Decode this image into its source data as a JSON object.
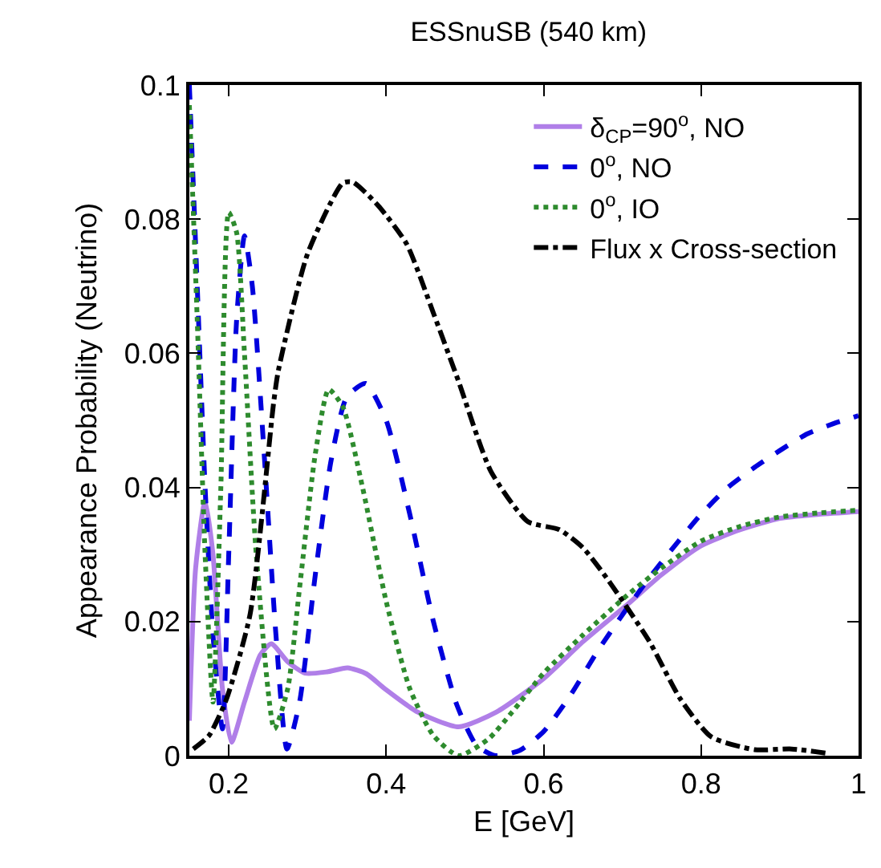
{
  "chart_data": {
    "type": "line",
    "title": "ESSnuSB (540 km)",
    "xlabel": "E [GeV]",
    "ylabel": "Appearance Probability (Neutrino)",
    "xlim": [
      0.15,
      1
    ],
    "ylim": [
      0,
      0.1
    ],
    "xticks": [
      0.2,
      0.4,
      0.6,
      0.8,
      1
    ],
    "yticks": [
      0,
      0.02,
      0.04,
      0.06,
      0.08,
      0.1
    ],
    "grid": false,
    "legend": "top right",
    "marker": "none",
    "series": [
      {
        "name": "δ$_{CP}$=90$^{o}$, NO",
        "color": "#b07fe8",
        "line_style": "solid",
        "x": [
          0.15,
          0.158,
          0.17,
          0.18,
          0.192,
          0.2035,
          0.22,
          0.24,
          0.254,
          0.275,
          0.297,
          0.325,
          0.351,
          0.375,
          0.398,
          0.44,
          0.492,
          0.54,
          0.6,
          0.65,
          0.707,
          0.75,
          0.8,
          0.85,
          0.9,
          0.95,
          1.0
        ],
        "values": [
          0.0052,
          0.028,
          0.038,
          0.03,
          0.01,
          0.002,
          0.008,
          0.015,
          0.0167,
          0.014,
          0.0123,
          0.0125,
          0.0131,
          0.0122,
          0.01,
          0.0065,
          0.0043,
          0.0065,
          0.0115,
          0.017,
          0.0226,
          0.027,
          0.0313,
          0.0337,
          0.0354,
          0.036,
          0.0364
        ]
      },
      {
        "name": "0$^{o}$, NO",
        "color": "#0000dd",
        "line_style": "dashed",
        "x": [
          0.15,
          0.16,
          0.17,
          0.18,
          0.192,
          0.2,
          0.21,
          0.22,
          0.23,
          0.245,
          0.26,
          0.274,
          0.29,
          0.31,
          0.33,
          0.35,
          0.374,
          0.4,
          0.43,
          0.46,
          0.49,
          0.515,
          0.539,
          0.57,
          0.6,
          0.634,
          0.668,
          0.7,
          0.734,
          0.768,
          0.8,
          0.834,
          0.868,
          0.9,
          0.935,
          0.968,
          1.0
        ],
        "values": [
          0.1,
          0.07,
          0.04,
          0.018,
          0.004,
          0.03,
          0.065,
          0.0775,
          0.07,
          0.045,
          0.018,
          0.001,
          0.008,
          0.027,
          0.044,
          0.0535,
          0.0555,
          0.05,
          0.036,
          0.02,
          0.0075,
          0.0015,
          0.0,
          0.0008,
          0.0036,
          0.009,
          0.0155,
          0.021,
          0.0265,
          0.0315,
          0.036,
          0.04,
          0.043,
          0.0455,
          0.048,
          0.0495,
          0.0507
        ]
      },
      {
        "name": "0$^{o}$, IO",
        "color": "#2e8b2e",
        "line_style": "dotted",
        "x": [
          0.15,
          0.16,
          0.17,
          0.18,
          0.19,
          0.2,
          0.21,
          0.22,
          0.235,
          0.258,
          0.275,
          0.29,
          0.31,
          0.327,
          0.345,
          0.37,
          0.4,
          0.43,
          0.46,
          0.492,
          0.53,
          0.56,
          0.6,
          0.65,
          0.707,
          0.75,
          0.8,
          0.85,
          0.9,
          0.95,
          1.0
        ],
        "values": [
          0.097,
          0.065,
          0.03,
          0.008,
          0.04,
          0.081,
          0.078,
          0.06,
          0.03,
          0.004,
          0.01,
          0.025,
          0.045,
          0.0546,
          0.052,
          0.04,
          0.023,
          0.01,
          0.003,
          0.0,
          0.0025,
          0.0065,
          0.0123,
          0.018,
          0.024,
          0.028,
          0.032,
          0.0342,
          0.0356,
          0.0362,
          0.0366
        ]
      },
      {
        "name": "Flux x Cross-section",
        "color": "#000000",
        "line_style": "dashdot",
        "x": [
          0.155,
          0.175,
          0.197,
          0.227,
          0.257,
          0.263,
          0.3,
          0.345,
          0.358,
          0.39,
          0.426,
          0.46,
          0.492,
          0.533,
          0.58,
          0.62,
          0.65,
          0.68,
          0.734,
          0.774,
          0.813,
          0.868,
          0.915,
          0.963
        ],
        "values": [
          0.001,
          0.003,
          0.0084,
          0.021,
          0.0526,
          0.0574,
          0.0748,
          0.0854,
          0.0855,
          0.082,
          0.0763,
          0.066,
          0.0558,
          0.0424,
          0.0349,
          0.0337,
          0.031,
          0.0265,
          0.0171,
          0.0084,
          0.0028,
          0.0009,
          0.001,
          0.0003
        ]
      }
    ]
  }
}
